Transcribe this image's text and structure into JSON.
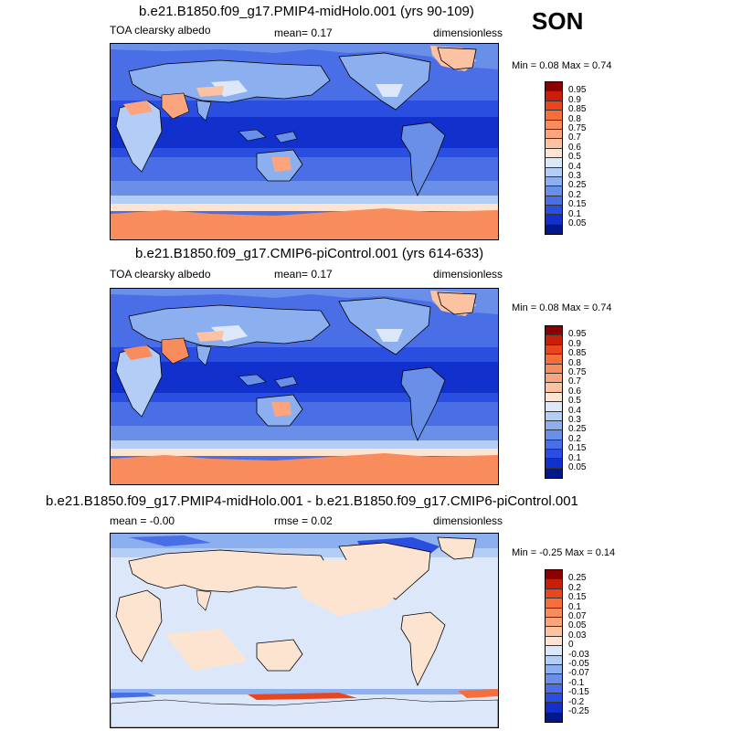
{
  "season": "SON",
  "panels": [
    {
      "title": "b.e21.B1850.f09_g17.PMIP4-midHolo.001 (yrs 90-109)",
      "left_label": "TOA clearsky albedo",
      "center_label": "mean=   0.17",
      "right_label": "dimensionless",
      "minmax": "Min =   0.08 Max =   0.74",
      "kind": "abs"
    },
    {
      "title": "b.e21.B1850.f09_g17.CMIP6-piControl.001 (yrs 614-633)",
      "left_label": "TOA clearsky albedo",
      "center_label": "mean=   0.17",
      "right_label": "dimensionless",
      "minmax": "Min =   0.08 Max =   0.74",
      "kind": "abs"
    },
    {
      "title": "b.e21.B1850.f09_g17.PMIP4-midHolo.001 - b.e21.B1850.f09_g17.CMIP6-piControl.001",
      "left_label": "mean =   -0.00",
      "center_label": "rmse =   0.02",
      "right_label": "dimensionless",
      "minmax": "Min =  -0.25 Max =   0.14",
      "kind": "diff"
    }
  ],
  "colorbars": {
    "abs": {
      "labels": [
        "0.95",
        "0.9",
        "0.85",
        "0.8",
        "0.75",
        "0.7",
        "0.6",
        "0.5",
        "0.4",
        "0.3",
        "0.25",
        "0.2",
        "0.15",
        "0.1",
        "0.05"
      ],
      "colors": [
        "#8b0000",
        "#c81e0a",
        "#e8461e",
        "#f66e3c",
        "#f98c5c",
        "#fba47e",
        "#fcc2a1",
        "#fde4d0",
        "#dce8fa",
        "#b4cdf7",
        "#8cafef",
        "#6a8fe8",
        "#4a6ee6",
        "#2a4ee0",
        "#1130cc",
        "#00188a"
      ]
    },
    "diff": {
      "labels": [
        "0.25",
        "0.2",
        "0.15",
        "0.1",
        "0.07",
        "0.05",
        "0.03",
        "0",
        "-0.03",
        "-0.05",
        "-0.07",
        "-0.1",
        "-0.15",
        "-0.2",
        "-0.25"
      ],
      "colors": [
        "#8b0000",
        "#c81e0a",
        "#e8461e",
        "#f66e3c",
        "#f98c5c",
        "#fba47e",
        "#fcc2a1",
        "#fde4d0",
        "#dce8fa",
        "#b4cdf7",
        "#8cafef",
        "#6a8fe8",
        "#4a6ee6",
        "#2a4ee0",
        "#1130cc",
        "#00188a"
      ]
    }
  }
}
